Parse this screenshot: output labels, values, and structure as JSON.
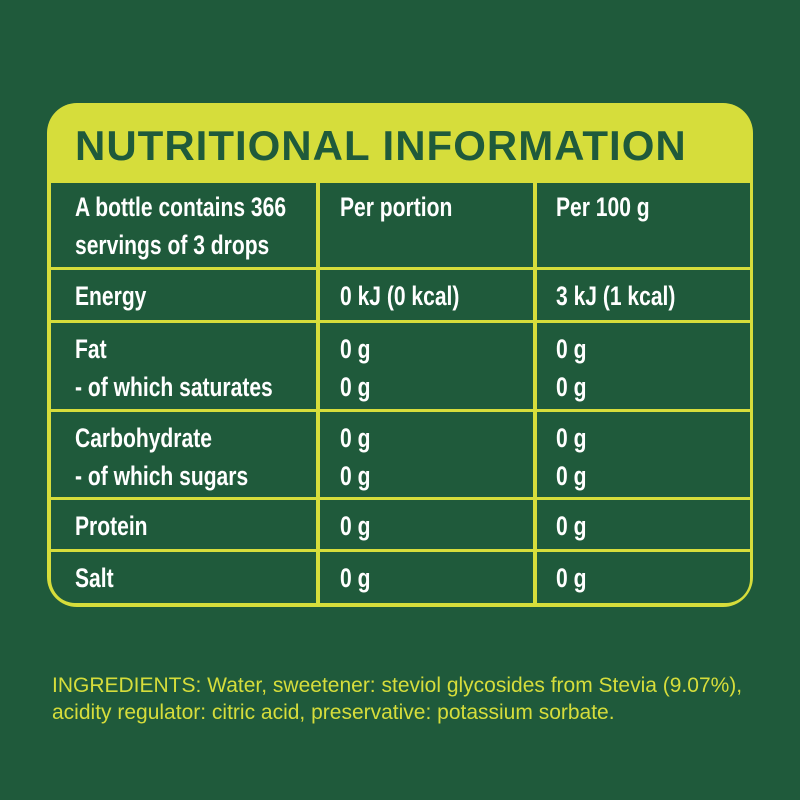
{
  "title": "NUTRITIONAL INFORMATION",
  "header": {
    "label_line1": "A bottle contains 366",
    "label_line2": "servings of 3 drops",
    "col1": "Per portion",
    "col2": "Per 100 g"
  },
  "rows": [
    {
      "lines": [
        "Energy"
      ],
      "portion": [
        "0 kJ (0 kcal)"
      ],
      "per100": [
        "3 kJ (1 kcal)"
      ]
    },
    {
      "lines": [
        "Fat",
        "- of which saturates"
      ],
      "portion": [
        "0 g",
        "0 g"
      ],
      "per100": [
        "0 g",
        "0 g"
      ]
    },
    {
      "lines": [
        "Carbohydrate",
        "- of which sugars"
      ],
      "portion": [
        "0 g",
        "0 g"
      ],
      "per100": [
        "0 g",
        "0 g"
      ]
    },
    {
      "lines": [
        "Protein"
      ],
      "portion": [
        "0 g"
      ],
      "per100": [
        "0 g"
      ]
    },
    {
      "lines": [
        "Salt"
      ],
      "portion": [
        "0 g"
      ],
      "per100": [
        "0 g"
      ]
    }
  ],
  "ingredients": "INGREDIENTS: Water, sweetener: steviol glycosides from Stevia (9.07%), acidity regulator: citric acid, preservative: potassium sorbate.",
  "colors": {
    "background": "#1f5a3b",
    "accent": "#d6dd3b"
  }
}
